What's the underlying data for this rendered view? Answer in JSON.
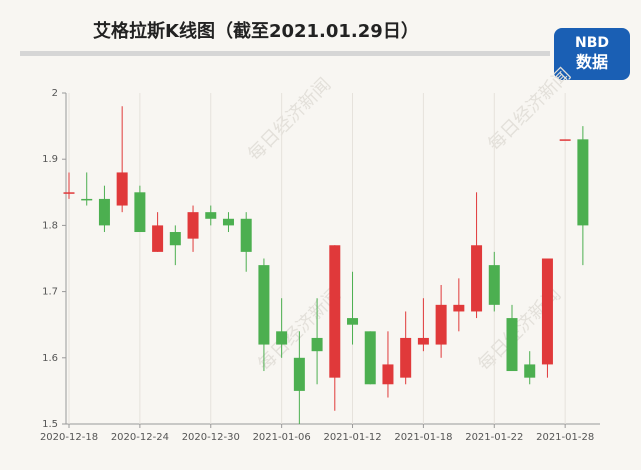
{
  "chart_data": {
    "type": "candlestick",
    "title": "艾格拉斯K线图（截至2021.01.29日）",
    "watermark": "每日经济新闻",
    "logo": {
      "top": "NBD",
      "bottom": "数据"
    },
    "categories": [
      "2020-12-18",
      null,
      null,
      null,
      "2020-12-24",
      null,
      null,
      null,
      "2020-12-30",
      null,
      null,
      null,
      "2021-01-06",
      null,
      null,
      null,
      "2021-01-12",
      null,
      null,
      null,
      "2021-01-18",
      null,
      null,
      null,
      "2021-01-22",
      null,
      null,
      null,
      "2021-01-28",
      null
    ],
    "open": [
      1.85,
      1.84,
      1.84,
      1.83,
      1.85,
      1.76,
      1.79,
      1.78,
      1.82,
      1.81,
      1.81,
      1.74,
      1.64,
      1.6,
      1.63,
      1.57,
      1.66,
      1.64,
      1.56,
      1.57,
      1.62,
      1.62,
      1.67,
      1.67,
      1.74,
      1.66,
      1.59,
      1.59,
      1.93,
      1.93
    ],
    "high": [
      1.88,
      1.88,
      1.86,
      1.98,
      1.86,
      1.82,
      1.8,
      1.83,
      1.83,
      1.82,
      1.82,
      1.75,
      1.69,
      1.64,
      1.69,
      1.77,
      1.73,
      1.64,
      1.64,
      1.67,
      1.69,
      1.71,
      1.72,
      1.85,
      1.76,
      1.68,
      1.61,
      1.75,
      1.93,
      1.95
    ],
    "low": [
      1.84,
      1.83,
      1.79,
      1.82,
      1.79,
      1.76,
      1.74,
      1.76,
      1.8,
      1.79,
      1.73,
      1.58,
      1.6,
      1.5,
      1.56,
      1.52,
      1.62,
      1.56,
      1.54,
      1.56,
      1.61,
      1.6,
      1.64,
      1.66,
      1.67,
      1.58,
      1.56,
      1.57,
      1.93,
      1.74
    ],
    "close": [
      1.85,
      1.84,
      1.8,
      1.88,
      1.79,
      1.8,
      1.77,
      1.82,
      1.81,
      1.8,
      1.76,
      1.62,
      1.62,
      1.55,
      1.61,
      1.77,
      1.65,
      1.56,
      1.59,
      1.63,
      1.63,
      1.68,
      1.68,
      1.77,
      1.68,
      1.58,
      1.57,
      1.75,
      1.93,
      1.8
    ],
    "up_color": "#e0393a",
    "down_color": "#4caf50",
    "ylim": [
      1.5,
      2
    ],
    "yticks": [
      1.5,
      1.6,
      1.7,
      1.8,
      1.9,
      2
    ]
  }
}
